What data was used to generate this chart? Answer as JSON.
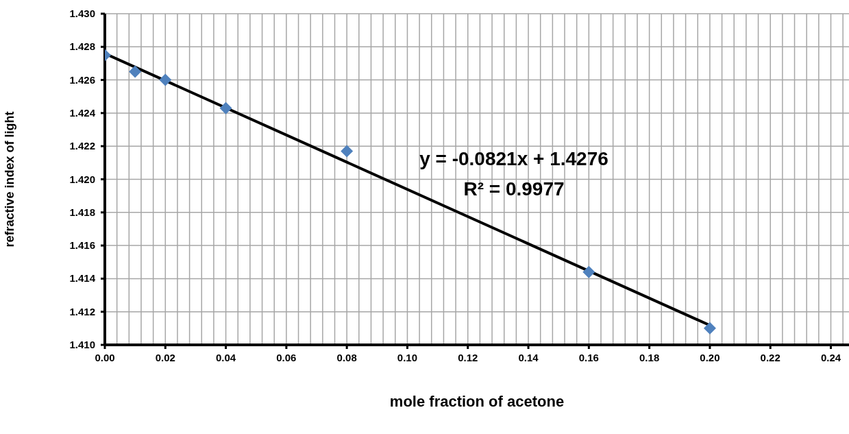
{
  "chart_data": {
    "type": "scatter",
    "xlabel": "mole fraction of acetone",
    "ylabel": "refractive index of light",
    "x": [
      0,
      0.01,
      0.02,
      0.04,
      0.08,
      0.16,
      0.2
    ],
    "series": [
      {
        "color": "#4f81bd",
        "marker": "diamond",
        "values": [
          1.4275,
          1.4265,
          1.426,
          1.4243,
          1.4217,
          1.4144,
          1.411
        ]
      },
      {
        "type": "line",
        "color": "#000000",
        "marker": "none",
        "x": [
          0,
          0.2
        ],
        "values": [
          1.4276,
          1.41118
        ]
      }
    ],
    "xlim": [
      0,
      0.246
    ],
    "xticks": [
      {
        "value": 0,
        "label": "0.00"
      },
      {
        "value": 0.004,
        "label": null
      },
      {
        "value": 0.008,
        "label": null
      },
      {
        "value": 0.012,
        "label": null
      },
      {
        "value": 0.016,
        "label": null
      },
      {
        "value": 0.02,
        "label": "0.02"
      },
      {
        "value": 0.024,
        "label": null
      },
      {
        "value": 0.028,
        "label": null
      },
      {
        "value": 0.032,
        "label": null
      },
      {
        "value": 0.036,
        "label": null
      },
      {
        "value": 0.04,
        "label": "0.04"
      },
      {
        "value": 0.044,
        "label": null
      },
      {
        "value": 0.048,
        "label": null
      },
      {
        "value": 0.052,
        "label": null
      },
      {
        "value": 0.056,
        "label": null
      },
      {
        "value": 0.06,
        "label": "0.06"
      },
      {
        "value": 0.064,
        "label": null
      },
      {
        "value": 0.068,
        "label": null
      },
      {
        "value": 0.072,
        "label": null
      },
      {
        "value": 0.076,
        "label": null
      },
      {
        "value": 0.08,
        "label": "0.08"
      },
      {
        "value": 0.084,
        "label": null
      },
      {
        "value": 0.088,
        "label": null
      },
      {
        "value": 0.092,
        "label": null
      },
      {
        "value": 0.096,
        "label": null
      },
      {
        "value": 0.1,
        "label": "0.10"
      },
      {
        "value": 0.104,
        "label": null
      },
      {
        "value": 0.108,
        "label": null
      },
      {
        "value": 0.112,
        "label": null
      },
      {
        "value": 0.116,
        "label": null
      },
      {
        "value": 0.12,
        "label": "0.12"
      },
      {
        "value": 0.124,
        "label": null
      },
      {
        "value": 0.128,
        "label": null
      },
      {
        "value": 0.132,
        "label": null
      },
      {
        "value": 0.136,
        "label": null
      },
      {
        "value": 0.14,
        "label": "0.14"
      },
      {
        "value": 0.144,
        "label": null
      },
      {
        "value": 0.148,
        "label": null
      },
      {
        "value": 0.152,
        "label": null
      },
      {
        "value": 0.156,
        "label": null
      },
      {
        "value": 0.16,
        "label": "0.16"
      },
      {
        "value": 0.164,
        "label": null
      },
      {
        "value": 0.168,
        "label": null
      },
      {
        "value": 0.172,
        "label": null
      },
      {
        "value": 0.176,
        "label": null
      },
      {
        "value": 0.18,
        "label": "0.18"
      },
      {
        "value": 0.184,
        "label": null
      },
      {
        "value": 0.188,
        "label": null
      },
      {
        "value": 0.192,
        "label": null
      },
      {
        "value": 0.196,
        "label": null
      },
      {
        "value": 0.2,
        "label": "0.20"
      },
      {
        "value": 0.204,
        "label": null
      },
      {
        "value": 0.208,
        "label": null
      },
      {
        "value": 0.212,
        "label": null
      },
      {
        "value": 0.216,
        "label": null
      },
      {
        "value": 0.22,
        "label": "0.22"
      },
      {
        "value": 0.224,
        "label": null
      },
      {
        "value": 0.228,
        "label": null
      },
      {
        "value": 0.232,
        "label": null
      },
      {
        "value": 0.236,
        "label": null
      },
      {
        "value": 0.24,
        "label": "0.24"
      },
      {
        "value": 0.244,
        "label": null
      }
    ],
    "ylim": [
      1.41,
      1.43
    ],
    "yticks": [
      {
        "value": 1.41,
        "label": "1.410"
      },
      {
        "value": 1.412,
        "label": "1.412"
      },
      {
        "value": 1.414,
        "label": "1.414"
      },
      {
        "value": 1.416,
        "label": "1.416"
      },
      {
        "value": 1.418,
        "label": "1.418"
      },
      {
        "value": 1.42,
        "label": "1.420"
      },
      {
        "value": 1.422,
        "label": "1.422"
      },
      {
        "value": 1.424,
        "label": "1.424"
      },
      {
        "value": 1.426,
        "label": "1.426"
      },
      {
        "value": 1.428,
        "label": "1.428"
      },
      {
        "value": 1.43,
        "label": "1.430"
      }
    ],
    "grid": true,
    "annotations": [
      "y = -0.0821x + 1.4276",
      "R² = 0.9977"
    ]
  }
}
